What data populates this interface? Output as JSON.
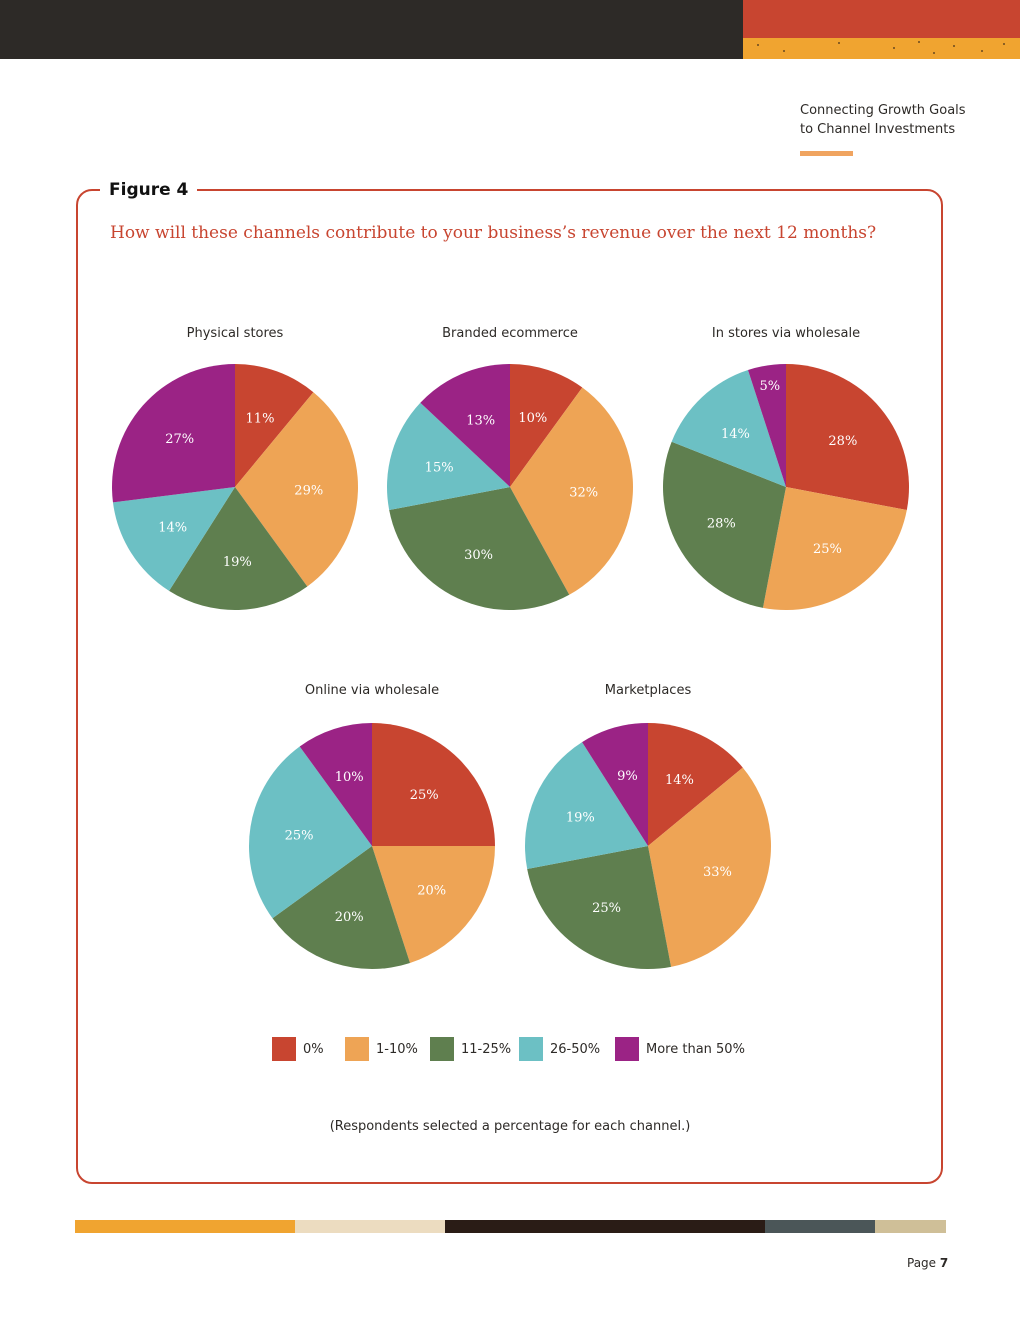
{
  "header": {
    "line1": "Connecting Growth Goals",
    "line2": "to Channel Investments"
  },
  "figure_label": "Figure 4",
  "question": "How will these channels contribute to your business’s revenue over the next 12 months?",
  "footnote": "(Respondents selected a percentage for each channel.)",
  "page": {
    "prefix": "Page",
    "number": "7"
  },
  "colors": {
    "0%": "#c84530",
    "1-10%": "#eea455",
    "11-25%": "#5f7f4f",
    "26-50%": "#6cc0c4",
    "More than 50%": "#9b2385"
  },
  "chart_data": [
    {
      "type": "pie",
      "title": "Physical stores",
      "categories": [
        "0%",
        "1-10%",
        "11-25%",
        "26-50%",
        "More than 50%"
      ],
      "values": [
        11,
        29,
        19,
        14,
        27
      ],
      "labels": [
        "11%",
        "29%",
        "19%",
        "14%",
        "27%"
      ]
    },
    {
      "type": "pie",
      "title": "Branded ecommerce",
      "categories": [
        "0%",
        "1-10%",
        "11-25%",
        "26-50%",
        "More than 50%"
      ],
      "values": [
        10,
        32,
        30,
        15,
        13
      ],
      "labels": [
        "10%",
        "32%",
        "30%",
        "15%",
        "13%"
      ]
    },
    {
      "type": "pie",
      "title": "In stores via wholesale",
      "categories": [
        "0%",
        "1-10%",
        "11-25%",
        "26-50%",
        "More than 50%"
      ],
      "values": [
        28,
        25,
        28,
        14,
        5
      ],
      "labels": [
        "28%",
        "25%",
        "28%",
        "14%",
        "5%"
      ]
    },
    {
      "type": "pie",
      "title": "Online via wholesale",
      "categories": [
        "0%",
        "1-10%",
        "11-25%",
        "26-50%",
        "More than 50%"
      ],
      "values": [
        25,
        20,
        20,
        25,
        10
      ],
      "labels": [
        "25%",
        "20%",
        "20%",
        "25%",
        "10%"
      ]
    },
    {
      "type": "pie",
      "title": "Marketplaces",
      "categories": [
        "0%",
        "1-10%",
        "11-25%",
        "26-50%",
        "More than 50%"
      ],
      "values": [
        14,
        33,
        25,
        19,
        9
      ],
      "labels": [
        "14%",
        "33%",
        "25%",
        "19%",
        "9%"
      ]
    }
  ],
  "legend": [
    {
      "label": "0%",
      "color": "#c84530"
    },
    {
      "label": "1-10%",
      "color": "#eea455"
    },
    {
      "label": "11-25%",
      "color": "#5f7f4f"
    },
    {
      "label": "26-50%",
      "color": "#6cc0c4"
    },
    {
      "label": "More than 50%",
      "color": "#9b2385"
    }
  ]
}
